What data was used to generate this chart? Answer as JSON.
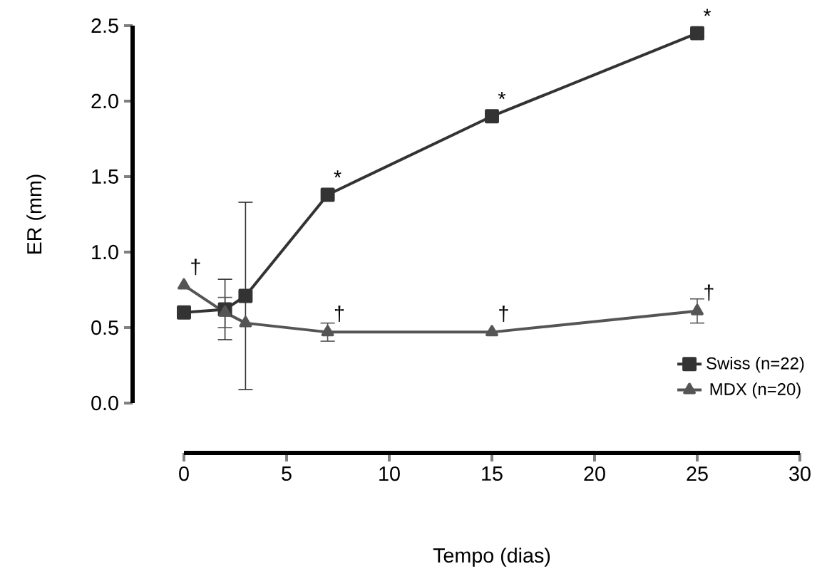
{
  "chart_data": {
    "type": "line",
    "xlabel": "Tempo (dias)",
    "ylabel": "ER (mm)",
    "xlim": [
      0,
      30
    ],
    "xticks": [
      0,
      5,
      10,
      15,
      20,
      25,
      30
    ],
    "ylim": [
      0,
      2.5
    ],
    "yticks": [
      {
        "value": 0,
        "label": "0.0"
      },
      {
        "value": 0.5,
        "label": "0.5"
      },
      {
        "value": 1,
        "label": "1.0"
      },
      {
        "value": 1.5,
        "label": "1.5"
      },
      {
        "value": 2,
        "label": "2.0"
      },
      {
        "value": 2.5,
        "label": "2.5"
      }
    ],
    "x": [
      0,
      2,
      3,
      7,
      15,
      25
    ],
    "series": [
      {
        "name": "Swiss (n=22)",
        "color": "#333333",
        "marker": "square",
        "values": [
          0.6,
          0.62,
          0.71,
          1.38,
          1.9,
          2.45
        ],
        "errors": [
          null,
          0.2,
          0.62,
          null,
          null,
          null
        ]
      },
      {
        "name": "MDX (n=20)",
        "color": "#555555",
        "marker": "triangle",
        "values": [
          0.78,
          0.6,
          0.53,
          0.47,
          0.47,
          0.61
        ],
        "errors": [
          null,
          0.1,
          null,
          0.06,
          null,
          0.08
        ]
      }
    ],
    "annotations": [
      {
        "text": "*",
        "x": 7,
        "y": 1.38
      },
      {
        "text": "*",
        "x": 15,
        "y": 1.9
      },
      {
        "text": "*",
        "x": 25,
        "y": 2.45
      },
      {
        "text": "†",
        "x": 0,
        "y": 0.78
      },
      {
        "text": "†",
        "x": 7,
        "y": 0.47
      },
      {
        "text": "†",
        "x": 15,
        "y": 0.47
      },
      {
        "text": "†",
        "x": 25,
        "y": 0.61
      }
    ],
    "legend": "bottom right",
    "grid": false,
    "line_style": "solid"
  }
}
